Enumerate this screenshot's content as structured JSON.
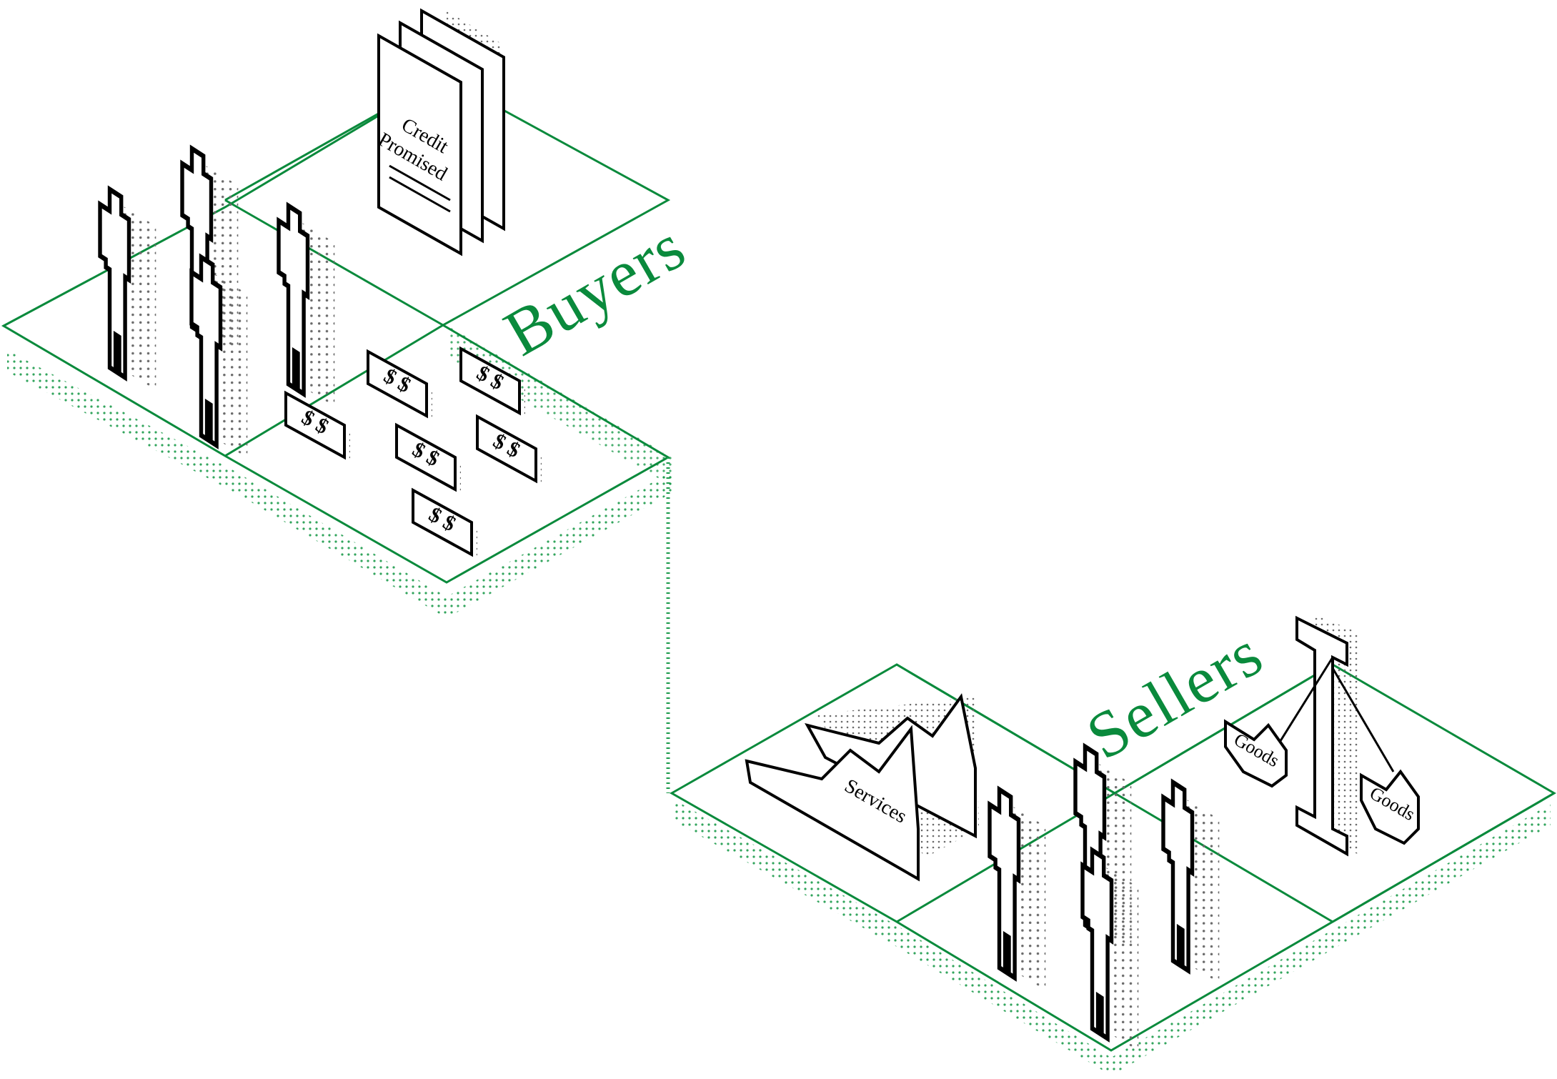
{
  "labels": {
    "buyers": "Buyers",
    "sellers": "Sellers",
    "credit_line1": "Credit",
    "credit_line2": "Promised",
    "dollar_bill": "$ $",
    "services": "Services",
    "goods": "Goods"
  },
  "colors": {
    "accent_green": "#0a8a3c",
    "dot_green": "#1a9a4a",
    "outline": "#000000"
  }
}
